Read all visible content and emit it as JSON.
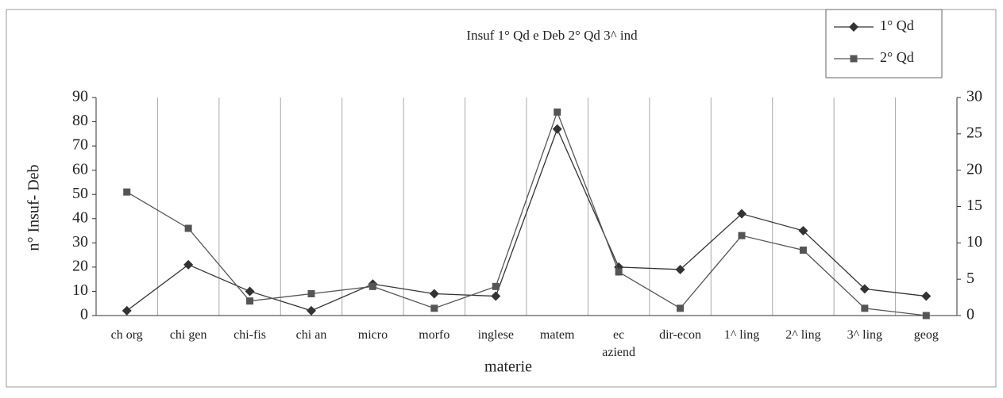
{
  "chart_data": {
    "type": "line",
    "title": "Insuf 1° Qd e Deb 2° Qd 3^ ind",
    "xlabel": "materie",
    "ylabel": "n° Insuf- Deb",
    "categories": [
      "ch org",
      "chi gen",
      "chi-fis",
      "chi an",
      "micro",
      "morfo",
      "inglese",
      "matem",
      "ec\naziend",
      "dir-econ",
      "1^ ling",
      "2^ ling",
      "3^ ling",
      "geog"
    ],
    "series": [
      {
        "name": "1° Qd",
        "color": "#333333",
        "marker": "diamond",
        "values": [
          2,
          21,
          10,
          2,
          13,
          9,
          8,
          77,
          20,
          19,
          42,
          35,
          11,
          8
        ]
      },
      {
        "name": "2° Qd",
        "color": "#555555",
        "marker": "square",
        "axis": "y2",
        "values": [
          17,
          12,
          2,
          3,
          4,
          1,
          4,
          28,
          6,
          1,
          11,
          9,
          1,
          0
        ]
      }
    ],
    "ylim": [
      0,
      90
    ],
    "yticks": [
      0,
      10,
      20,
      30,
      40,
      50,
      60,
      70,
      80,
      90
    ],
    "y2lim": [
      0,
      30
    ],
    "y2ticks": [
      0,
      5,
      10,
      15,
      20,
      25,
      30
    ],
    "grid": "vertical",
    "legend": "top-right"
  }
}
